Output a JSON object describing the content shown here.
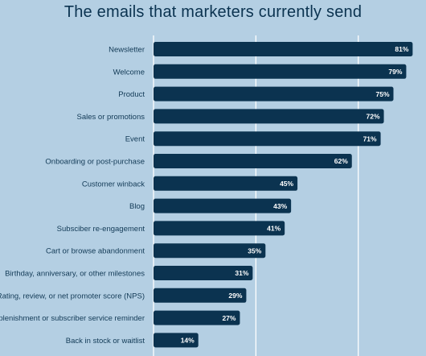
{
  "chart_data": {
    "type": "bar",
    "orientation": "horizontal",
    "title": "The emails that marketers currently send",
    "categories": [
      "Newsletter",
      "Welcome",
      "Product",
      "Sales or promotions",
      "Event",
      "Onboarding or post-purchase",
      "Customer winback",
      "Blog",
      "Subsciber re-engagement",
      "Cart or browse abandonment",
      "Birthday, anniversary, or other milestones",
      "Rating, review, or net promoter score (NPS)",
      "Replenishment or subscriber service reminder",
      "Back in stock or waitlist"
    ],
    "values": [
      81,
      79,
      75,
      72,
      71,
      62,
      45,
      43,
      41,
      35,
      31,
      29,
      27,
      14
    ],
    "value_labels": [
      "81%",
      "79%",
      "75%",
      "72%",
      "71%",
      "62%",
      "45%",
      "43%",
      "41%",
      "35%",
      "31%",
      "29%",
      "27%",
      "14%"
    ],
    "xlim": [
      0,
      100
    ],
    "grid": true,
    "colors": {
      "bar": "#0b3350",
      "background": "#b4cfe3",
      "grid": "#ffffff"
    }
  }
}
